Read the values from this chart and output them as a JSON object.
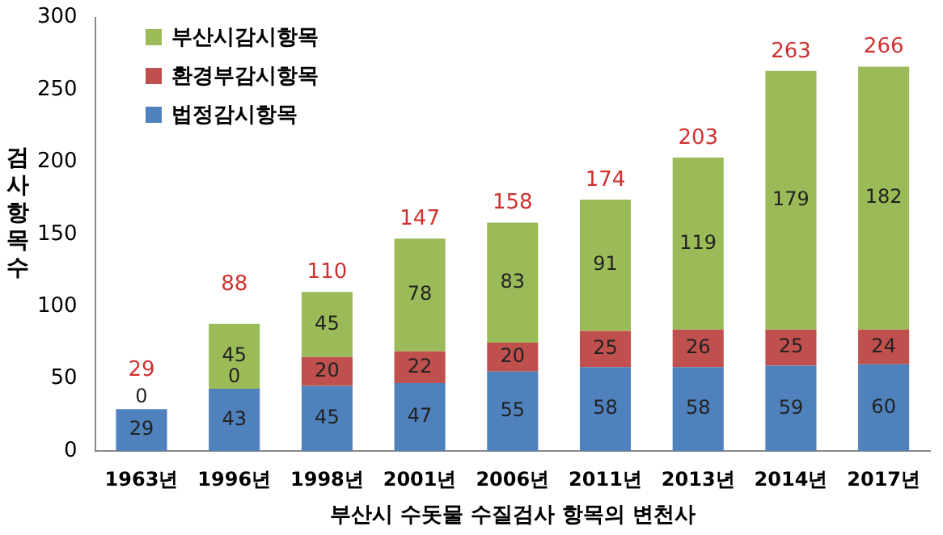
{
  "chart_data": {
    "type": "bar",
    "stacked": true,
    "xlabel": "부산시 수돗물 수질검사 항목의 변천사",
    "ylabel": "검사항목수",
    "categories": [
      "1963년",
      "1996년",
      "1998년",
      "2001년",
      "2006년",
      "2011년",
      "2013년",
      "2014년",
      "2017년"
    ],
    "series": [
      {
        "name": "법정감시항목",
        "color": "#4f81bd",
        "values": [
          29,
          43,
          45,
          47,
          55,
          58,
          58,
          59,
          60
        ],
        "value_labels": [
          "29",
          "43",
          "45",
          "47",
          "55",
          "58",
          "58",
          "59",
          "60"
        ]
      },
      {
        "name": "환경부감시항목",
        "color": "#c0504d",
        "values": [
          0,
          0,
          20,
          22,
          20,
          25,
          26,
          25,
          24
        ],
        "value_labels": [
          "0",
          "0",
          "20",
          "22",
          "20",
          "25",
          "26",
          "25",
          "24"
        ]
      },
      {
        "name": "부산시감시항목",
        "color": "#9bbb59",
        "values": [
          null,
          45,
          45,
          78,
          83,
          91,
          119,
          179,
          182
        ],
        "value_labels": [
          null,
          "45",
          "45",
          "78",
          "83",
          "91",
          "119",
          "179",
          "182"
        ]
      }
    ],
    "totals": [
      "29",
      "88",
      "110",
      "147",
      "158",
      "174",
      "203",
      "263",
      "266"
    ],
    "ylim": [
      0,
      300
    ],
    "yticks": [
      0,
      50,
      100,
      150,
      200,
      250,
      300
    ],
    "grid": false,
    "legend": "top left"
  }
}
